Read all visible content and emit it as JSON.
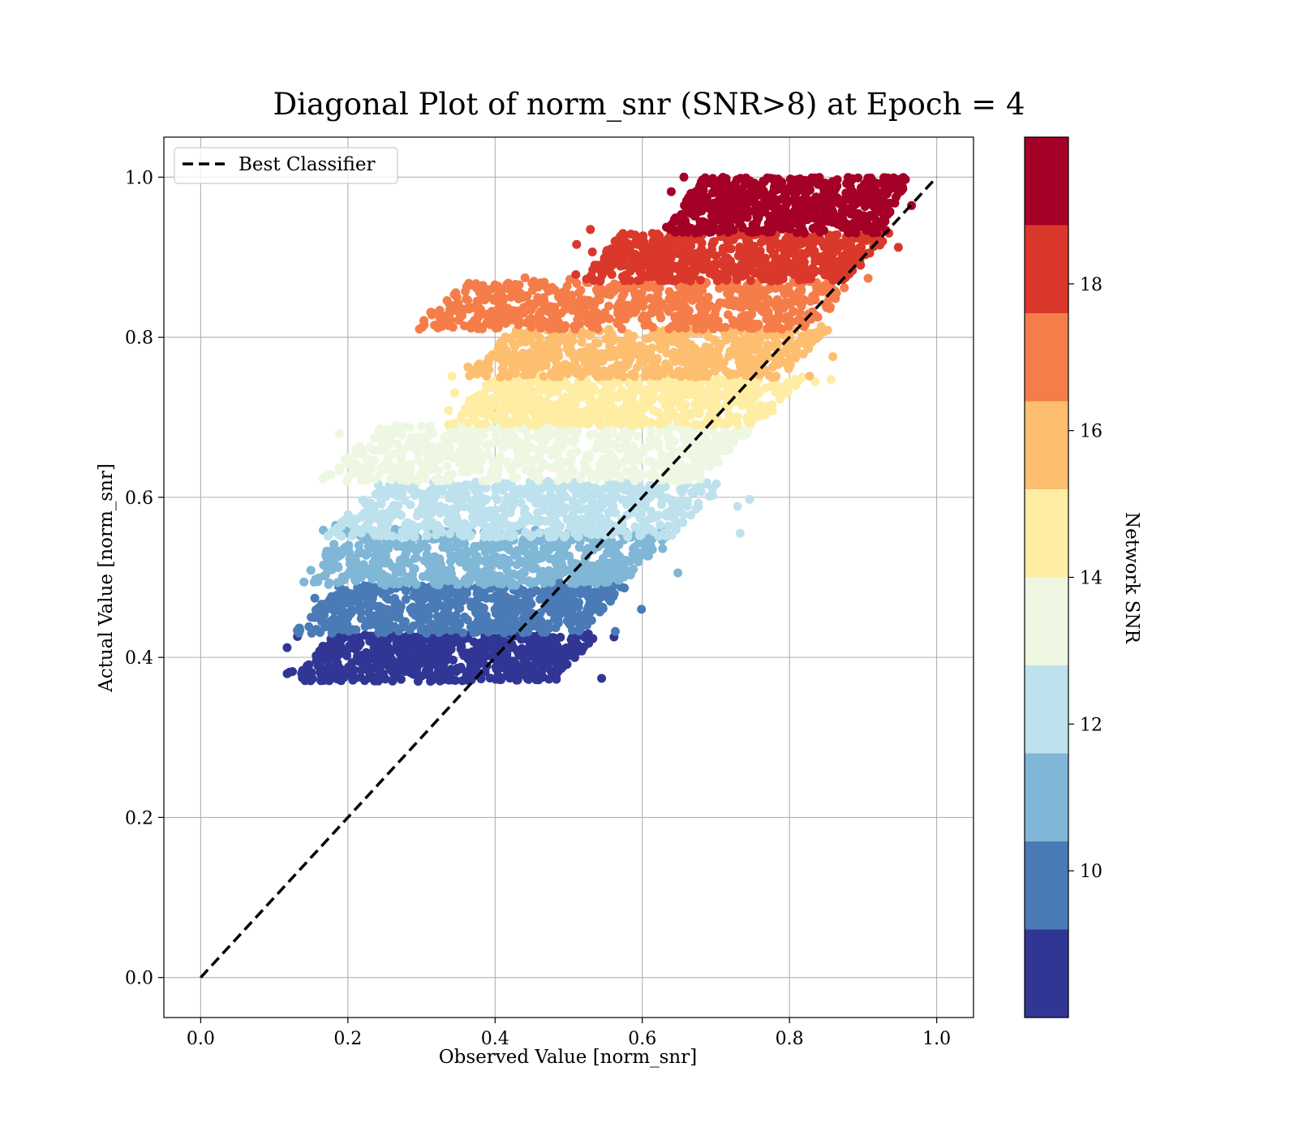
{
  "chart_data": {
    "type": "scatter",
    "title": "Diagonal Plot of norm_snr (SNR>8) at Epoch = 4",
    "xlabel": "Observed Value [norm_snr]",
    "ylabel": "Actual Value [norm_snr]",
    "xlim": [
      -0.05,
      1.05
    ],
    "ylim": [
      -0.05,
      1.05
    ],
    "xticks": [
      "0.0",
      "0.2",
      "0.4",
      "0.6",
      "0.8",
      "1.0"
    ],
    "yticks": [
      "0.0",
      "0.2",
      "0.4",
      "0.6",
      "0.8",
      "1.0"
    ],
    "grid": true,
    "legend": {
      "position": "upper-left",
      "entries": [
        "Best Classifier"
      ]
    },
    "reference_line": {
      "name": "Best Classifier",
      "style": "dashed",
      "color": "#000000",
      "x": [
        0.0,
        1.0
      ],
      "y": [
        0.0,
        1.0
      ]
    },
    "colorbar": {
      "label": "Network SNR",
      "range": [
        8,
        20
      ],
      "ticks": [
        "10",
        "12",
        "14",
        "16",
        "18"
      ],
      "bins": [
        {
          "from": 8,
          "to": 9.2,
          "color": "#313695"
        },
        {
          "from": 9.2,
          "to": 10.4,
          "color": "#4a7bb7"
        },
        {
          "from": 10.4,
          "to": 11.6,
          "color": "#80b6d6"
        },
        {
          "from": 11.6,
          "to": 12.8,
          "color": "#bde2ee"
        },
        {
          "from": 12.8,
          "to": 14.0,
          "color": "#eef7e1"
        },
        {
          "from": 14.0,
          "to": 15.2,
          "color": "#feeda2"
        },
        {
          "from": 15.2,
          "to": 16.4,
          "color": "#fdbe70"
        },
        {
          "from": 16.4,
          "to": 17.6,
          "color": "#f57d4a"
        },
        {
          "from": 17.6,
          "to": 18.8,
          "color": "#da382a"
        },
        {
          "from": 18.8,
          "to": 20,
          "color": "#a50026"
        }
      ]
    },
    "scatter_bands": [
      {
        "snr_bin": 0,
        "y_range": [
          0.37,
          0.43
        ],
        "x_range": [
          0.11,
          0.57
        ]
      },
      {
        "snr_bin": 1,
        "y_range": [
          0.43,
          0.49
        ],
        "x_range": [
          0.11,
          0.61
        ]
      },
      {
        "snr_bin": 2,
        "y_range": [
          0.49,
          0.56
        ],
        "x_range": [
          0.11,
          0.68
        ]
      },
      {
        "snr_bin": 3,
        "y_range": [
          0.55,
          0.62
        ],
        "x_range": [
          0.15,
          0.75
        ]
      },
      {
        "snr_bin": 4,
        "y_range": [
          0.62,
          0.69
        ],
        "x_range": [
          0.14,
          0.8
        ]
      },
      {
        "snr_bin": 5,
        "y_range": [
          0.69,
          0.75
        ],
        "x_range": [
          0.31,
          0.86
        ]
      },
      {
        "snr_bin": 6,
        "y_range": [
          0.75,
          0.81
        ],
        "x_range": [
          0.34,
          0.89
        ]
      },
      {
        "snr_bin": 7,
        "y_range": [
          0.81,
          0.87
        ],
        "x_range": [
          0.26,
          0.95
        ]
      },
      {
        "snr_bin": 8,
        "y_range": [
          0.87,
          0.93
        ],
        "x_range": [
          0.5,
          0.97
        ]
      },
      {
        "snr_bin": 9,
        "y_range": [
          0.93,
          1.0
        ],
        "x_range": [
          0.62,
          0.99
        ]
      }
    ]
  }
}
